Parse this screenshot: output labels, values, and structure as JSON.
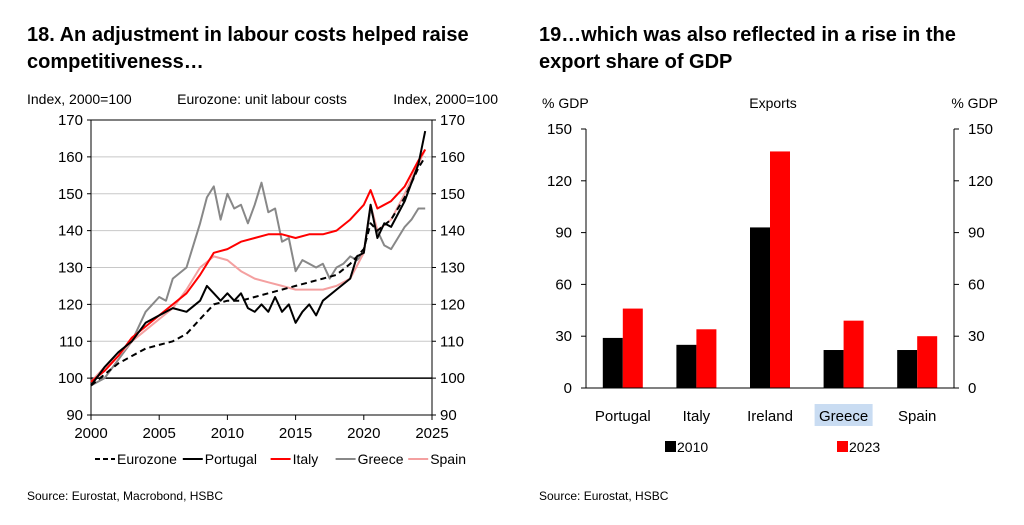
{
  "charts": [
    {
      "title": "18. An adjustment in labour costs helped raise competitiveness…",
      "source": "Source: Eurostat, Macrobond, HSBC",
      "chart_data": {
        "type": "line",
        "subtitle": "Eurozone: unit labour costs",
        "ylabel_left": "Index, 2000=100",
        "ylabel_right": "Index, 2000=100",
        "xlim": [
          2000,
          2025
        ],
        "ylim": [
          90,
          170
        ],
        "xticks": [
          2000,
          2005,
          2010,
          2015,
          2020,
          2025
        ],
        "yticks": [
          90,
          100,
          110,
          120,
          130,
          140,
          150,
          160,
          170
        ],
        "grid": true,
        "reference_line": 100,
        "legend_position": "bottom",
        "series": [
          {
            "name": "Eurozone",
            "color": "#000000",
            "dash": "dashed",
            "points": [
              [
                2000,
                98
              ],
              [
                2001,
                101
              ],
              [
                2002,
                104
              ],
              [
                2003,
                106
              ],
              [
                2004,
                108
              ],
              [
                2005,
                109
              ],
              [
                2006,
                110
              ],
              [
                2007,
                112
              ],
              [
                2008,
                116
              ],
              [
                2009,
                120
              ],
              [
                2010,
                121
              ],
              [
                2011,
                121
              ],
              [
                2012,
                122
              ],
              [
                2013,
                123
              ],
              [
                2014,
                124
              ],
              [
                2015,
                125
              ],
              [
                2016,
                126
              ],
              [
                2017,
                127
              ],
              [
                2018,
                128
              ],
              [
                2019,
                131
              ],
              [
                2020,
                135
              ],
              [
                2020.5,
                142
              ],
              [
                2021,
                140
              ],
              [
                2022,
                143
              ],
              [
                2023,
                149
              ],
              [
                2024,
                157
              ],
              [
                2024.5,
                160
              ]
            ]
          },
          {
            "name": "Portugal",
            "color": "#000000",
            "dash": "solid",
            "points": [
              [
                2000,
                98
              ],
              [
                2001,
                103
              ],
              [
                2002,
                107
              ],
              [
                2003,
                110
              ],
              [
                2004,
                115
              ],
              [
                2005,
                117
              ],
              [
                2006,
                119
              ],
              [
                2007,
                118
              ],
              [
                2008,
                121
              ],
              [
                2008.5,
                125
              ],
              [
                2009,
                123
              ],
              [
                2009.5,
                121
              ],
              [
                2010,
                123
              ],
              [
                2010.5,
                121
              ],
              [
                2011,
                123
              ],
              [
                2011.5,
                119
              ],
              [
                2012,
                118
              ],
              [
                2012.5,
                120
              ],
              [
                2013,
                118
              ],
              [
                2013.5,
                122
              ],
              [
                2014,
                118
              ],
              [
                2014.5,
                120
              ],
              [
                2015,
                115
              ],
              [
                2015.5,
                118
              ],
              [
                2016,
                120
              ],
              [
                2016.5,
                117
              ],
              [
                2017,
                121
              ],
              [
                2018,
                124
              ],
              [
                2019,
                127
              ],
              [
                2019.5,
                133
              ],
              [
                2020,
                134
              ],
              [
                2020.5,
                147
              ],
              [
                2021,
                138
              ],
              [
                2021.5,
                142
              ],
              [
                2022,
                141
              ],
              [
                2023,
                148
              ],
              [
                2024,
                158
              ],
              [
                2024.5,
                167
              ]
            ]
          },
          {
            "name": "Italy",
            "color": "#ff0000",
            "dash": "solid",
            "points": [
              [
                2000,
                99
              ],
              [
                2001,
                102
              ],
              [
                2002,
                106
              ],
              [
                2003,
                111
              ],
              [
                2004,
                114
              ],
              [
                2005,
                117
              ],
              [
                2006,
                120
              ],
              [
                2007,
                123
              ],
              [
                2008,
                128
              ],
              [
                2009,
                134
              ],
              [
                2010,
                135
              ],
              [
                2011,
                137
              ],
              [
                2012,
                138
              ],
              [
                2013,
                139
              ],
              [
                2014,
                139
              ],
              [
                2015,
                138
              ],
              [
                2016,
                139
              ],
              [
                2017,
                139
              ],
              [
                2018,
                140
              ],
              [
                2019,
                143
              ],
              [
                2020,
                147
              ],
              [
                2020.5,
                151
              ],
              [
                2021,
                146
              ],
              [
                2022,
                148
              ],
              [
                2023,
                152
              ],
              [
                2024,
                159
              ],
              [
                2024.5,
                162
              ]
            ]
          },
          {
            "name": "Greece",
            "color": "#888888",
            "dash": "solid",
            "points": [
              [
                2000,
                98
              ],
              [
                2001,
                100
              ],
              [
                2002,
                105
              ],
              [
                2003,
                110
              ],
              [
                2004,
                118
              ],
              [
                2005,
                122
              ],
              [
                2005.5,
                121
              ],
              [
                2006,
                127
              ],
              [
                2007,
                130
              ],
              [
                2007.5,
                136
              ],
              [
                2008,
                142
              ],
              [
                2008.5,
                149
              ],
              [
                2009,
                152
              ],
              [
                2009.5,
                143
              ],
              [
                2010,
                150
              ],
              [
                2010.5,
                146
              ],
              [
                2011,
                147
              ],
              [
                2011.5,
                142
              ],
              [
                2012,
                147
              ],
              [
                2012.5,
                153
              ],
              [
                2013,
                145
              ],
              [
                2013.5,
                146
              ],
              [
                2014,
                137
              ],
              [
                2014.5,
                138
              ],
              [
                2015,
                129
              ],
              [
                2015.5,
                132
              ],
              [
                2016,
                131
              ],
              [
                2016.5,
                130
              ],
              [
                2017,
                131
              ],
              [
                2017.5,
                127
              ],
              [
                2018,
                130
              ],
              [
                2018.5,
                131
              ],
              [
                2019,
                133
              ],
              [
                2019.5,
                132
              ],
              [
                2020,
                134
              ],
              [
                2020.5,
                146
              ],
              [
                2021,
                140
              ],
              [
                2021.5,
                136
              ],
              [
                2022,
                135
              ],
              [
                2022.5,
                138
              ],
              [
                2023,
                141
              ],
              [
                2023.5,
                143
              ],
              [
                2024,
                146
              ],
              [
                2024.5,
                146
              ]
            ]
          },
          {
            "name": "Spain",
            "color": "#f4a0a0",
            "dash": "solid",
            "points": [
              [
                2000,
                99
              ],
              [
                2001,
                103
              ],
              [
                2002,
                106
              ],
              [
                2003,
                110
              ],
              [
                2004,
                113
              ],
              [
                2005,
                116
              ],
              [
                2006,
                119
              ],
              [
                2007,
                124
              ],
              [
                2008,
                130
              ],
              [
                2009,
                133
              ],
              [
                2010,
                132
              ],
              [
                2011,
                129
              ],
              [
                2012,
                127
              ],
              [
                2013,
                126
              ],
              [
                2014,
                125
              ],
              [
                2015,
                124
              ],
              [
                2016,
                124
              ],
              [
                2017,
                124
              ],
              [
                2018,
                125
              ],
              [
                2019,
                127
              ],
              [
                2020,
                134
              ],
              [
                2020.5,
                147
              ],
              [
                2021,
                140
              ],
              [
                2022,
                143
              ],
              [
                2023,
                150
              ],
              [
                2024,
                158
              ],
              [
                2024.5,
                162
              ]
            ]
          }
        ]
      }
    },
    {
      "title": "19…which was also reflected in a rise in the export share of GDP",
      "source": "Source: Eurostat, HSBC",
      "chart_data": {
        "type": "bar",
        "subtitle": "Exports",
        "ylabel_left": "% GDP",
        "ylabel_right": "% GDP",
        "ylim": [
          0,
          150
        ],
        "yticks": [
          0,
          30,
          60,
          90,
          120,
          150
        ],
        "categories": [
          "Portugal",
          "Italy",
          "Ireland",
          "Greece",
          "Spain"
        ],
        "highlighted_category": "Greece",
        "legend_position": "bottom",
        "grid": false,
        "series": [
          {
            "name": "2010",
            "color": "#000000",
            "values": [
              29,
              25,
              93,
              22,
              22
            ]
          },
          {
            "name": "2023",
            "color": "#ff0000",
            "values": [
              46,
              34,
              137,
              39,
              30
            ]
          }
        ]
      }
    }
  ]
}
